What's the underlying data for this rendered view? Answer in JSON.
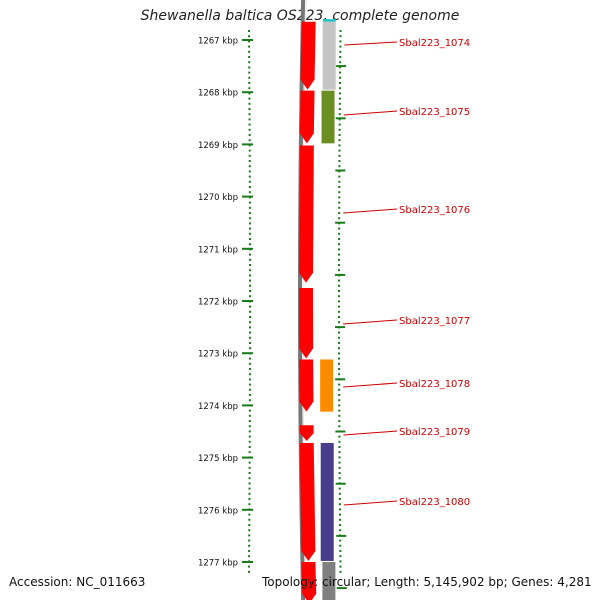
{
  "title": "Shewanella baltica OS223, complete genome",
  "footer": {
    "accession": "Accession: NC_011663",
    "summary": "Topology: circular; Length: 5,145,902 bp; Genes: 4,281"
  },
  "ruler": {
    "unit": "kbp",
    "ticks": [
      {
        "kbp": 1267,
        "label": "1267 kbp"
      },
      {
        "kbp": 1268,
        "label": "1268 kbp"
      },
      {
        "kbp": 1269,
        "label": "1269 kbp"
      },
      {
        "kbp": 1270,
        "label": "1270 kbp"
      },
      {
        "kbp": 1271,
        "label": "1271 kbp"
      },
      {
        "kbp": 1272,
        "label": "1272 kbp"
      },
      {
        "kbp": 1273,
        "label": "1273 kbp"
      },
      {
        "kbp": 1274,
        "label": "1274 kbp"
      },
      {
        "kbp": 1275,
        "label": "1275 kbp"
      },
      {
        "kbp": 1276,
        "label": "1276 kbp"
      },
      {
        "kbp": 1277,
        "label": "1277 kbp"
      }
    ]
  },
  "colors": {
    "gene_red": "#ff0000",
    "label_red": "#cc0000",
    "ruler_green": "#1a7a1a",
    "backbone_gray": "#777777",
    "cyan": "#19c6c6",
    "light_gray": "#c4c4c4",
    "olive": "#6b8e23",
    "orange": "#ff8c00",
    "purple": "#483d8b",
    "dark_gray": "#808080"
  },
  "genes": [
    {
      "label": "Sbal223_1074",
      "start_kbp": 1266.65,
      "end_kbp": 1267.95
    },
    {
      "label": "Sbal223_1075",
      "start_kbp": 1267.97,
      "end_kbp": 1268.98
    },
    {
      "label": "Sbal223_1076",
      "start_kbp": 1269.02,
      "end_kbp": 1271.65
    },
    {
      "label": "Sbal223_1077",
      "start_kbp": 1271.75,
      "end_kbp": 1273.1
    },
    {
      "label": "Sbal223_1078",
      "start_kbp": 1273.12,
      "end_kbp": 1274.12
    },
    {
      "label": "Sbal223_1079",
      "start_kbp": 1274.38,
      "end_kbp": 1274.68
    },
    {
      "label": "Sbal223_1080",
      "start_kbp": 1274.72,
      "end_kbp": 1276.98
    },
    {
      "label": "",
      "start_kbp": 1277.0,
      "end_kbp": 1277.8
    }
  ],
  "features": [
    {
      "color_key": "cyan",
      "start_kbp": 1266.6,
      "end_kbp": 1266.65
    },
    {
      "color_key": "light_gray",
      "start_kbp": 1266.65,
      "end_kbp": 1267.95
    },
    {
      "color_key": "olive",
      "start_kbp": 1267.97,
      "end_kbp": 1268.98
    },
    {
      "color_key": "orange",
      "start_kbp": 1273.12,
      "end_kbp": 1274.12
    },
    {
      "color_key": "purple",
      "start_kbp": 1274.72,
      "end_kbp": 1276.98
    },
    {
      "color_key": "dark_gray",
      "start_kbp": 1277.0,
      "end_kbp": 1277.8
    }
  ]
}
